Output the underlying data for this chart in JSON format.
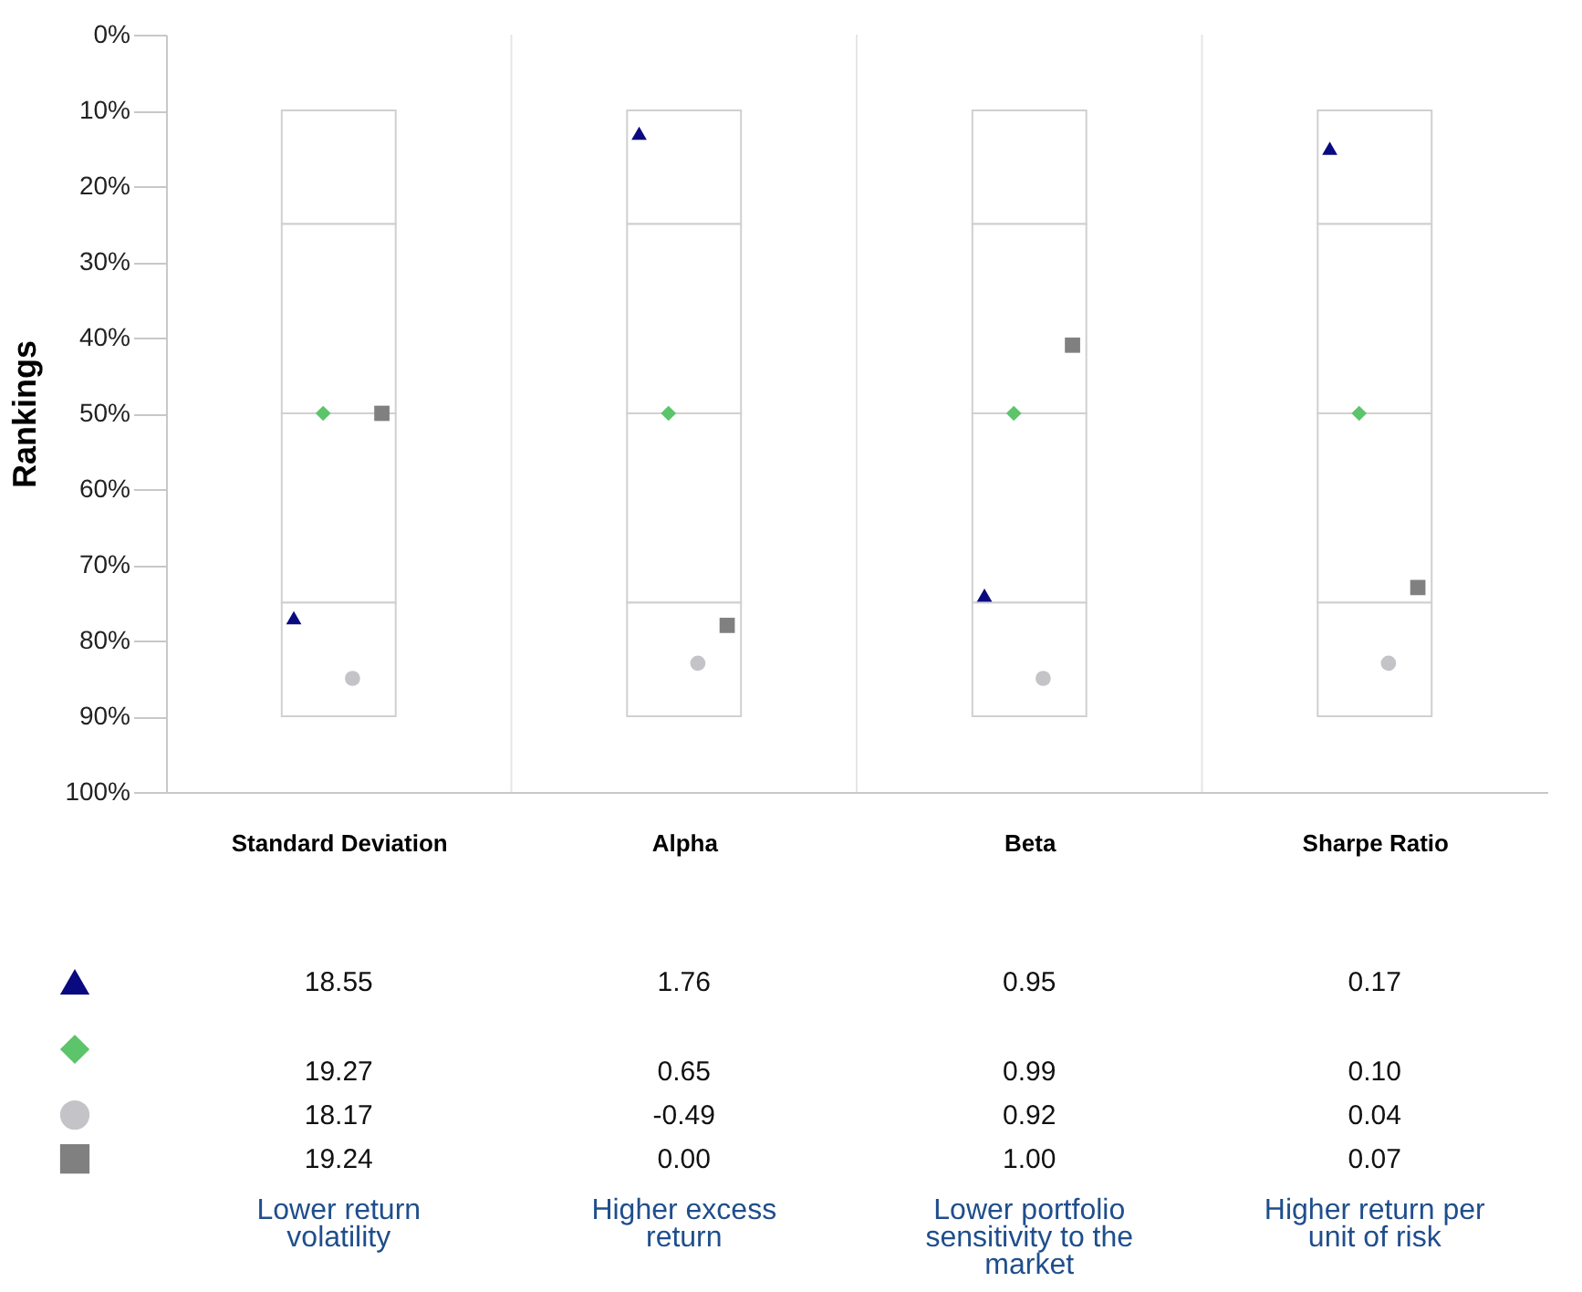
{
  "chart_data": {
    "type": "scatter",
    "ylabel": "Rankings",
    "categories": [
      "Standard Deviation",
      "Alpha",
      "Beta",
      "Sharpe Ratio"
    ],
    "ylim": [
      100,
      0
    ],
    "yticks": [
      {
        "value": 0,
        "label": "0%"
      },
      {
        "value": 10,
        "label": "10%"
      },
      {
        "value": 20,
        "label": "20%"
      },
      {
        "value": 30,
        "label": "30%"
      },
      {
        "value": 40,
        "label": "40%"
      },
      {
        "value": 50,
        "label": "50%"
      },
      {
        "value": 60,
        "label": "60%"
      },
      {
        "value": 70,
        "label": "70%"
      },
      {
        "value": 80,
        "label": "80%"
      },
      {
        "value": 90,
        "label": "90%"
      },
      {
        "value": 100,
        "label": "100%"
      }
    ],
    "series": [
      {
        "type": "bar",
        "color": "#ffffff",
        "base": [
          10,
          10,
          10,
          10
        ],
        "values": [
          15,
          15,
          15,
          15
        ]
      },
      {
        "type": "bar",
        "color": "#ffffff",
        "base": [
          25,
          25,
          25,
          25
        ],
        "values": [
          25,
          25,
          25,
          25
        ]
      },
      {
        "type": "bar",
        "color": "#ffffff",
        "base": [
          50,
          50,
          50,
          50
        ],
        "values": [
          25,
          25,
          25,
          25
        ]
      },
      {
        "type": "bar",
        "color": "#ffffff",
        "base": [
          75,
          75,
          75,
          75
        ],
        "values": [
          15,
          15,
          15,
          15
        ]
      },
      {
        "marker": "triangle",
        "color": "#0a0a80",
        "values": [
          77,
          13,
          74,
          15
        ]
      },
      {
        "marker": "diamond",
        "color": "#5cc46a",
        "values": [
          50,
          50,
          50,
          50
        ]
      },
      {
        "marker": "circle",
        "color": "#c4c4c8",
        "values": [
          85,
          83,
          85,
          83
        ]
      },
      {
        "marker": "square",
        "color": "#808080",
        "values": [
          50,
          78,
          41,
          73
        ]
      }
    ],
    "grid": "x",
    "annotations": [
      "18.55",
      "1.76",
      "0.95",
      "0.17",
      "19.27",
      "0.65",
      "0.99",
      "0.10",
      "18.17",
      "-0.49",
      "0.92",
      "0.04",
      "19.24",
      "0.00",
      "1.00",
      "0.07",
      "Lower return volatility",
      "Higher excess return",
      "Lower portfolio sensitivity to the market",
      "Higher return per unit of risk"
    ]
  }
}
